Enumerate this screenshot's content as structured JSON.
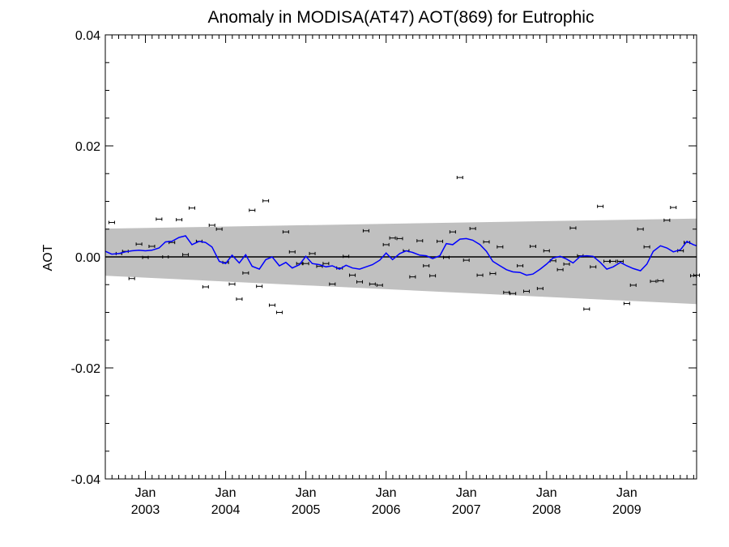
{
  "chart_data": {
    "type": "scatter",
    "title": "Anomaly in MODISA(AT47) AOT(869) for Eutrophic",
    "xlabel": "",
    "ylabel": "AOT",
    "ylim": [
      -0.04,
      0.04
    ],
    "xlim": [
      2002.5,
      2009.87
    ],
    "y_ticks": [
      {
        "value": 0.04,
        "label": "0.04"
      },
      {
        "value": 0.02,
        "label": "0.02"
      },
      {
        "value": 0.0,
        "label": "0.00"
      },
      {
        "value": -0.02,
        "label": "-0.02"
      },
      {
        "value": -0.04,
        "label": "-0.04"
      }
    ],
    "x_ticks": [
      {
        "value": 2003.0,
        "month": "Jan",
        "year": "2003"
      },
      {
        "value": 2004.0,
        "month": "Jan",
        "year": "2004"
      },
      {
        "value": 2005.0,
        "month": "Jan",
        "year": "2005"
      },
      {
        "value": 2006.0,
        "month": "Jan",
        "year": "2006"
      },
      {
        "value": 2007.0,
        "month": "Jan",
        "year": "2007"
      },
      {
        "value": 2008.0,
        "month": "Jan",
        "year": "2008"
      },
      {
        "value": 2009.0,
        "month": "Jan",
        "year": "2009"
      }
    ],
    "grid": false,
    "zero_line": 0.0,
    "band": {
      "color": "#c0c0c0",
      "x": [
        2002.5,
        2009.87
      ],
      "upper": [
        0.0051,
        0.0069
      ],
      "lower": [
        -0.0034,
        -0.0085
      ]
    },
    "points": {
      "color": "#000000",
      "x": [
        2002.58,
        2002.67,
        2002.75,
        2002.83,
        2002.92,
        2003.0,
        2003.08,
        2003.17,
        2003.25,
        2003.33,
        2003.42,
        2003.5,
        2003.58,
        2003.67,
        2003.75,
        2003.83,
        2003.92,
        2004.0,
        2004.08,
        2004.17,
        2004.25,
        2004.33,
        2004.42,
        2004.5,
        2004.58,
        2004.67,
        2004.75,
        2004.83,
        2004.92,
        2005.0,
        2005.08,
        2005.17,
        2005.25,
        2005.33,
        2005.42,
        2005.5,
        2005.58,
        2005.67,
        2005.75,
        2005.83,
        2005.92,
        2006.0,
        2006.08,
        2006.17,
        2006.25,
        2006.33,
        2006.42,
        2006.5,
        2006.58,
        2006.67,
        2006.75,
        2006.83,
        2006.92,
        2007.0,
        2007.08,
        2007.17,
        2007.25,
        2007.33,
        2007.42,
        2007.5,
        2007.58,
        2007.67,
        2007.75,
        2007.83,
        2007.92,
        2008.0,
        2008.08,
        2008.17,
        2008.25,
        2008.33,
        2008.42,
        2008.5,
        2008.58,
        2008.67,
        2008.75,
        2008.83,
        2008.92,
        2009.0,
        2009.08,
        2009.17,
        2009.25,
        2009.33,
        2009.42,
        2009.5,
        2009.58,
        2009.67,
        2009.75,
        2009.83,
        2009.87
      ],
      "y": [
        0.0062,
        0.0006,
        0.001,
        -0.0039,
        0.0023,
        -0.0001,
        0.0019,
        0.0068,
        0.0,
        0.0026,
        0.0067,
        0.0004,
        0.0088,
        0.0028,
        -0.0054,
        0.0057,
        0.005,
        -0.001,
        -0.0049,
        -0.0076,
        -0.0029,
        0.0084,
        -0.0053,
        0.0101,
        -0.0087,
        -0.01,
        0.0045,
        0.0009,
        -0.0012,
        -0.0012,
        0.0006,
        -0.0017,
        -0.0012,
        -0.0049,
        -0.002,
        0.0001,
        -0.0033,
        -0.0045,
        0.0047,
        -0.0049,
        -0.0051,
        0.0022,
        0.0034,
        0.0033,
        0.0011,
        -0.0036,
        0.0029,
        -0.0016,
        -0.0034,
        0.0028,
        -0.0001,
        0.0045,
        0.0143,
        -0.0006,
        0.0051,
        -0.0033,
        0.0027,
        -0.003,
        0.0018,
        -0.0064,
        -0.0066,
        -0.0016,
        -0.0062,
        0.0019,
        -0.0057,
        0.0011,
        -0.0007,
        -0.0023,
        -0.0013,
        0.0052,
        0.0002,
        -0.0094,
        -0.0018,
        0.0091,
        -0.0008,
        -0.0008,
        -0.0008,
        -0.0084,
        -0.0051,
        0.005,
        0.0018,
        -0.0044,
        -0.0043,
        0.0066,
        0.0089,
        0.0011,
        0.0026,
        -0.0034,
        -0.0033
      ]
    },
    "running_mean": {
      "color": "#0000ff",
      "x": [
        2002.5,
        2002.58,
        2002.67,
        2002.75,
        2002.83,
        2002.92,
        2003.0,
        2003.08,
        2003.17,
        2003.25,
        2003.33,
        2003.42,
        2003.5,
        2003.58,
        2003.67,
        2003.75,
        2003.83,
        2003.92,
        2004.0,
        2004.08,
        2004.17,
        2004.25,
        2004.33,
        2004.42,
        2004.5,
        2004.58,
        2004.67,
        2004.75,
        2004.83,
        2004.92,
        2005.0,
        2005.08,
        2005.17,
        2005.25,
        2005.33,
        2005.42,
        2005.5,
        2005.58,
        2005.67,
        2005.75,
        2005.83,
        2005.92,
        2006.0,
        2006.08,
        2006.17,
        2006.25,
        2006.33,
        2006.42,
        2006.5,
        2006.58,
        2006.67,
        2006.75,
        2006.83,
        2006.92,
        2007.0,
        2007.08,
        2007.17,
        2007.25,
        2007.33,
        2007.42,
        2007.5,
        2007.58,
        2007.67,
        2007.75,
        2007.83,
        2007.92,
        2008.0,
        2008.08,
        2008.17,
        2008.25,
        2008.33,
        2008.42,
        2008.5,
        2008.58,
        2008.67,
        2008.75,
        2008.83,
        2008.92,
        2009.0,
        2009.08,
        2009.17,
        2009.25,
        2009.33,
        2009.42,
        2009.5,
        2009.58,
        2009.67,
        2009.75,
        2009.83,
        2009.87
      ],
      "y": [
        0.001,
        0.0005,
        0.0006,
        0.0009,
        0.0011,
        0.0012,
        0.0011,
        0.0012,
        0.0016,
        0.0027,
        0.0028,
        0.0035,
        0.0038,
        0.0022,
        0.0028,
        0.0026,
        0.0018,
        -0.0008,
        -0.0012,
        0.0003,
        -0.0011,
        0.0004,
        -0.0017,
        -0.0022,
        -0.0005,
        0.0,
        -0.0016,
        -0.001,
        -0.002,
        -0.0014,
        0.0001,
        -0.0012,
        -0.0014,
        -0.0018,
        -0.0016,
        -0.0022,
        -0.0015,
        -0.002,
        -0.0022,
        -0.0018,
        -0.0014,
        -0.0006,
        0.0007,
        -0.0005,
        0.0006,
        0.0011,
        0.0008,
        0.0003,
        0.0002,
        -0.0003,
        0.0002,
        0.0024,
        0.0022,
        0.0032,
        0.0033,
        0.003,
        0.0022,
        0.001,
        -0.0008,
        -0.0016,
        -0.0023,
        -0.0027,
        -0.0028,
        -0.0033,
        -0.0031,
        -0.0022,
        -0.0013,
        -0.0002,
        0.0001,
        -0.0004,
        -0.0011,
        0.0001,
        0.0002,
        0.0001,
        -0.001,
        -0.0022,
        -0.0018,
        -0.001,
        -0.0016,
        -0.0021,
        -0.0025,
        -0.0013,
        0.001,
        0.002,
        0.0016,
        0.0009,
        0.0013,
        0.0028,
        0.0022,
        0.002
      ]
    }
  }
}
